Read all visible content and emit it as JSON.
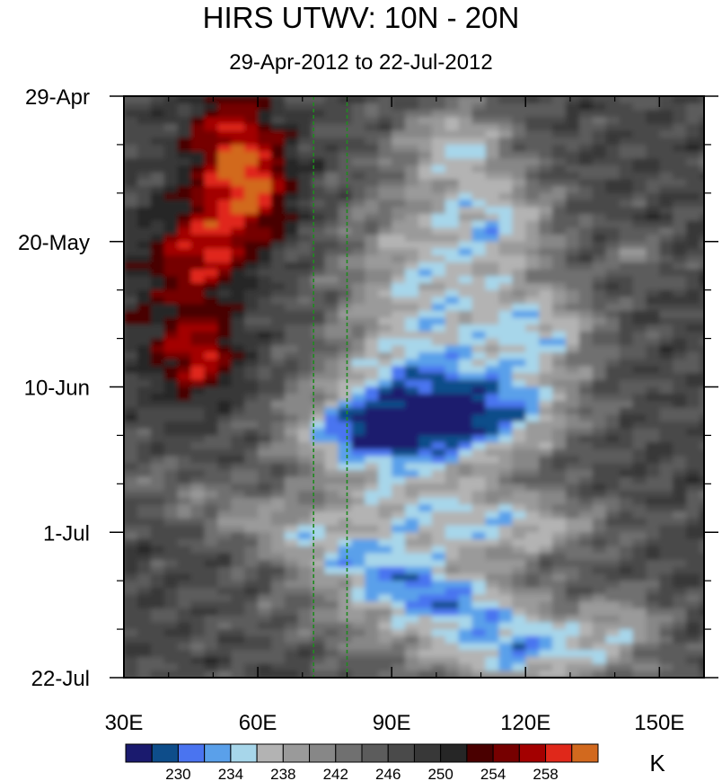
{
  "chart_data": {
    "type": "heatmap",
    "title": "HIRS UTWV: 10N - 20N",
    "subtitle": "29-Apr-2012 to 22-Jul-2012",
    "xlabel": "",
    "ylabel": "",
    "xlim": [
      30,
      160
    ],
    "x_ticks": [
      30,
      60,
      90,
      120,
      150
    ],
    "x_tick_labels": [
      "30E",
      "60E",
      "90E",
      "120E",
      "150E"
    ],
    "y_ticks": [
      0,
      21,
      42,
      63,
      84
    ],
    "y_tick_labels": [
      "29-Apr",
      "20-May",
      "10-Jun",
      "1-Jul",
      "22-Jul"
    ],
    "ylim_days": [
      0,
      84
    ],
    "reference_lines_lon": [
      72.5,
      80
    ],
    "colorbar": {
      "units": "K",
      "levels": [
        228,
        230,
        232,
        234,
        236,
        238,
        240,
        242,
        244,
        246,
        248,
        250,
        252,
        254,
        256,
        258,
        260
      ],
      "labeled_levels": [
        "230",
        "234",
        "238",
        "242",
        "246",
        "250",
        "254",
        "258"
      ],
      "colors": [
        "#1a1a6e",
        "#0e4d8a",
        "#4a74f0",
        "#5aa0ea",
        "#a7d6ea",
        "#b3b3b3",
        "#9a9a9a",
        "#878787",
        "#707070",
        "#5c5c5c",
        "#4a4a4a",
        "#383838",
        "#262626",
        "#4a0000",
        "#760000",
        "#a30000",
        "#e0281a",
        "#d2691e"
      ]
    }
  }
}
